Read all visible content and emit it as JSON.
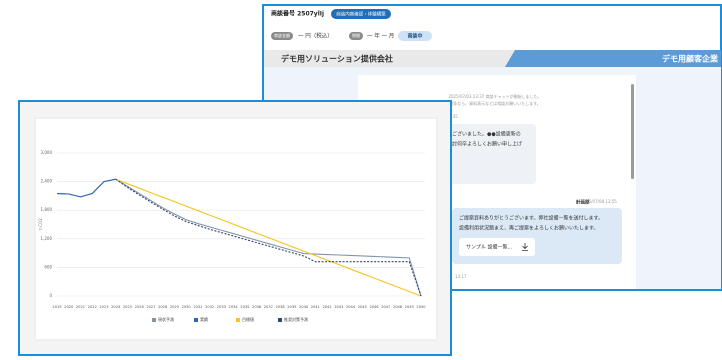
{
  "back_window": {
    "case_no": "商談番号 2507ylIj",
    "case_badge": "商談内容確認・体験構築",
    "price_tag": "商談金額",
    "price": "一 円（税込）",
    "period_tag": "期間",
    "period": "一 年 一 月",
    "status": "商談中",
    "company_left": "デモ用ソリューション提供会社",
    "company_right": "デモ用顧客企業",
    "system_lines": [
      "2025/07/03 13:37 商談チャットが開始しました。",
      "箇条なら、資料表示などは相談お願いいたします。"
    ],
    "msg1": {
      "sender": "海上花子",
      "role": "営業技術",
      "time": "2025/07/07 13:35",
      "lines": [
        "ございました。●●設備更新の",
        "討何卒よろしくお願い申し上げ"
      ]
    },
    "msg2": {
      "sender": "計画部",
      "time": "2025/07/08 13:55",
      "lines": [
        "ご提案資料ありがとうございます。弊社設備一覧を送付します。",
        "設備利用状況踏まえ、再ご提案をよろしくお願いいたします。"
      ],
      "attachment": "サンプル 設備一覧..."
    },
    "footer_time": "13:17"
  },
  "chart_data": {
    "type": "line",
    "y_label": "t-CO2",
    "x": [
      2019,
      2020,
      2021,
      2022,
      2023,
      2024,
      2025,
      2026,
      2027,
      2028,
      2029,
      2030,
      2031,
      2032,
      2033,
      2034,
      2035,
      2036,
      2037,
      2038,
      2039,
      2040,
      2041,
      2042,
      2043,
      2044,
      2045,
      2046,
      2047,
      2048,
      2049,
      2050
    ],
    "xlim": [
      2019,
      2050
    ],
    "ylim": [
      0,
      3000
    ],
    "yticks": [
      0,
      600,
      {
        "value": 1200,
        "label": "1,200"
      },
      {
        "value": 1800,
        "label": "1,800"
      },
      {
        "value": 2400,
        "label": "2,400"
      },
      {
        "value": 3000,
        "label": "3,000"
      }
    ],
    "grid": true,
    "series": [
      {
        "name": "現状予測",
        "color": "#8393ab",
        "dash": false,
        "values": [
          2150,
          2140,
          2080,
          2150,
          2400,
          2450,
          2300,
          2150,
          2000,
          1850,
          1720,
          1600,
          1520,
          1450,
          1380,
          1310,
          1240,
          1170,
          1100,
          1030,
          960,
          890,
          880,
          870,
          860,
          850,
          840,
          830,
          820,
          810,
          800,
          0
        ]
      },
      {
        "name": "実績",
        "color": "#2f64b8",
        "dash": false,
        "values": [
          2150,
          2140,
          2080,
          2150,
          2400,
          2450,
          null,
          null,
          null,
          null,
          null,
          null,
          null,
          null,
          null,
          null,
          null,
          null,
          null,
          null,
          null,
          null,
          null,
          null,
          null,
          null,
          null,
          null,
          null,
          null,
          null,
          null
        ]
      },
      {
        "name": "目標値",
        "color": "#f3c623",
        "dash": false,
        "values": [
          null,
          null,
          null,
          null,
          null,
          2450,
          2356,
          2262,
          2167,
          2073,
          1979,
          1885,
          1790,
          1696,
          1602,
          1508,
          1413,
          1319,
          1225,
          1131,
          1037,
          942,
          848,
          754,
          660,
          565,
          471,
          377,
          283,
          188,
          94,
          0
        ]
      },
      {
        "name": "推奨対策予測",
        "color": "#34476e",
        "dash": true,
        "values": [
          null,
          null,
          null,
          null,
          null,
          2450,
          2280,
          2120,
          1970,
          1820,
          1680,
          1560,
          1480,
          1400,
          1330,
          1260,
          1190,
          1120,
          1050,
          980,
          910,
          840,
          720,
          720,
          720,
          720,
          720,
          720,
          720,
          720,
          720,
          0
        ]
      }
    ]
  }
}
